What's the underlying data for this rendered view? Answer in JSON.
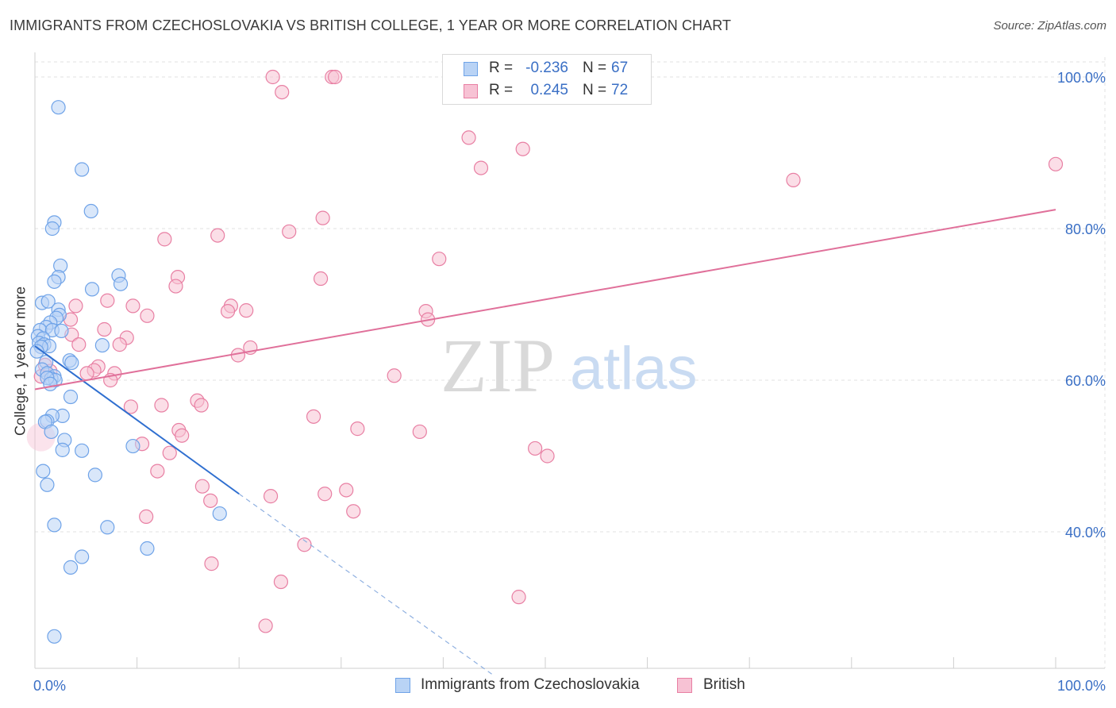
{
  "header": {
    "title": "IMMIGRANTS FROM CZECHOSLOVAKIA VS BRITISH COLLEGE, 1 YEAR OR MORE CORRELATION CHART",
    "source": "Source: ZipAtlas.com"
  },
  "watermark": {
    "zip": "ZIP",
    "atlas": "atlas"
  },
  "legend_top": {
    "r_label": "R =",
    "n_label": "N =",
    "rows": [
      {
        "r": "-0.236",
        "n": "67"
      },
      {
        "r": "0.245",
        "n": "72"
      }
    ]
  },
  "chart_data": {
    "type": "scatter",
    "title": "IMMIGRANTS FROM CZECHOSLOVAKIA VS BRITISH COLLEGE, 1 YEAR OR MORE CORRELATION CHART",
    "xlabel": "",
    "ylabel": "College, 1 year or more",
    "xlim": [
      0,
      100
    ],
    "ylim": [
      20,
      103
    ],
    "x_tick_labels": [
      {
        "value": 0,
        "label": "0.0%"
      },
      {
        "value": 100,
        "label": "100.0%"
      }
    ],
    "y_ticks": [
      {
        "value": 40,
        "label": "40.0%"
      },
      {
        "value": 60,
        "label": "60.0%"
      },
      {
        "value": 80,
        "label": "80.0%"
      },
      {
        "value": 100,
        "label": "100.0%"
      }
    ],
    "grid": true,
    "legend_position": "bottom",
    "series": [
      {
        "name": "Immigrants from Czechoslovakia",
        "color": "#6fa3e8",
        "fill": "#b9d3f5",
        "r": -0.236,
        "n": 67,
        "trend": {
          "x0": 0,
          "y0": 64.5,
          "x1": 20,
          "y1": 45.0,
          "dashed_to_x": 45,
          "dashed_to_y": 21.0
        },
        "points": [
          [
            2.3,
            96.0
          ],
          [
            4.6,
            87.8
          ],
          [
            5.5,
            82.3
          ],
          [
            1.9,
            80.8
          ],
          [
            1.7,
            80.0
          ],
          [
            2.5,
            75.1
          ],
          [
            2.3,
            73.6
          ],
          [
            1.9,
            73.0
          ],
          [
            8.2,
            73.8
          ],
          [
            8.4,
            72.7
          ],
          [
            5.6,
            72.0
          ],
          [
            0.7,
            70.2
          ],
          [
            1.3,
            70.4
          ],
          [
            2.3,
            69.3
          ],
          [
            2.4,
            68.6
          ],
          [
            2.1,
            68.2
          ],
          [
            1.5,
            67.6
          ],
          [
            1.1,
            67.0
          ],
          [
            0.5,
            66.6
          ],
          [
            1.7,
            66.6
          ],
          [
            2.6,
            66.5
          ],
          [
            0.3,
            65.8
          ],
          [
            0.8,
            65.5
          ],
          [
            0.4,
            64.9
          ],
          [
            0.9,
            64.7
          ],
          [
            6.6,
            64.6
          ],
          [
            1.4,
            64.5
          ],
          [
            0.6,
            64.4
          ],
          [
            0.2,
            63.8
          ],
          [
            1.1,
            62.4
          ],
          [
            3.4,
            62.6
          ],
          [
            3.6,
            62.3
          ],
          [
            0.7,
            61.4
          ],
          [
            1.2,
            60.9
          ],
          [
            1.9,
            60.5
          ],
          [
            1.6,
            60.2
          ],
          [
            2.0,
            60.0
          ],
          [
            1.2,
            60.3
          ],
          [
            1.5,
            59.5
          ],
          [
            3.5,
            57.8
          ],
          [
            2.7,
            55.3
          ],
          [
            1.7,
            55.3
          ],
          [
            1.2,
            54.6
          ],
          [
            1.0,
            54.5
          ],
          [
            1.6,
            53.2
          ],
          [
            2.9,
            52.1
          ],
          [
            9.6,
            51.3
          ],
          [
            4.6,
            50.7
          ],
          [
            2.7,
            50.8
          ],
          [
            0.8,
            48.0
          ],
          [
            5.9,
            47.5
          ],
          [
            1.2,
            46.2
          ],
          [
            18.1,
            42.4
          ],
          [
            1.9,
            40.9
          ],
          [
            7.1,
            40.6
          ],
          [
            11.0,
            37.8
          ],
          [
            4.6,
            36.7
          ],
          [
            3.5,
            35.3
          ],
          [
            1.9,
            26.2
          ]
        ]
      },
      {
        "name": "British",
        "color": "#e87fa3",
        "fill": "#f7c2d4",
        "r": 0.245,
        "n": 72,
        "trend": {
          "x0": 0,
          "y0": 58.8,
          "x1": 100,
          "y1": 82.5
        },
        "points": [
          [
            23.3,
            100.0
          ],
          [
            29.1,
            100.0
          ],
          [
            29.4,
            100.0
          ],
          [
            24.2,
            98.0
          ],
          [
            52.2,
            100.0
          ],
          [
            42.5,
            92.0
          ],
          [
            47.8,
            90.5
          ],
          [
            43.7,
            88.0
          ],
          [
            100.0,
            88.5
          ],
          [
            74.3,
            86.4
          ],
          [
            28.2,
            81.4
          ],
          [
            24.9,
            79.6
          ],
          [
            17.9,
            79.1
          ],
          [
            12.7,
            78.6
          ],
          [
            39.6,
            76.0
          ],
          [
            14.0,
            73.6
          ],
          [
            28.0,
            73.4
          ],
          [
            13.8,
            72.4
          ],
          [
            7.1,
            70.5
          ],
          [
            4.0,
            69.8
          ],
          [
            9.6,
            69.8
          ],
          [
            19.2,
            69.8
          ],
          [
            18.9,
            69.1
          ],
          [
            20.7,
            69.2
          ],
          [
            38.3,
            69.1
          ],
          [
            3.5,
            68.0
          ],
          [
            11.0,
            68.5
          ],
          [
            38.5,
            68.0
          ],
          [
            3.6,
            66.0
          ],
          [
            6.8,
            66.7
          ],
          [
            9.0,
            65.6
          ],
          [
            4.3,
            64.7
          ],
          [
            8.3,
            64.7
          ],
          [
            21.1,
            64.3
          ],
          [
            19.9,
            63.3
          ],
          [
            6.2,
            61.8
          ],
          [
            5.8,
            61.3
          ],
          [
            7.8,
            60.9
          ],
          [
            5.1,
            60.9
          ],
          [
            35.2,
            60.6
          ],
          [
            7.4,
            60.0
          ],
          [
            15.9,
            57.3
          ],
          [
            16.3,
            56.7
          ],
          [
            12.4,
            56.7
          ],
          [
            9.4,
            56.5
          ],
          [
            27.3,
            55.2
          ],
          [
            31.6,
            53.6
          ],
          [
            37.7,
            53.2
          ],
          [
            14.1,
            53.4
          ],
          [
            14.4,
            52.7
          ],
          [
            10.5,
            51.6
          ],
          [
            13.2,
            50.4
          ],
          [
            49.0,
            51.0
          ],
          [
            50.2,
            50.0
          ],
          [
            12.0,
            48.0
          ],
          [
            16.4,
            46.0
          ],
          [
            30.5,
            45.5
          ],
          [
            28.4,
            45.0
          ],
          [
            23.1,
            44.7
          ],
          [
            17.2,
            44.1
          ],
          [
            31.2,
            42.7
          ],
          [
            10.9,
            42.0
          ],
          [
            26.4,
            38.3
          ],
          [
            17.3,
            35.8
          ],
          [
            24.1,
            33.4
          ],
          [
            47.4,
            31.4
          ],
          [
            22.6,
            27.6
          ],
          [
            1.0,
            62.0
          ],
          [
            0.6,
            60.5
          ],
          [
            1.5,
            61.2
          ]
        ]
      }
    ]
  },
  "legend_bottom": {
    "items": [
      {
        "label": "Immigrants from Czechoslovakia"
      },
      {
        "label": "British"
      }
    ]
  }
}
